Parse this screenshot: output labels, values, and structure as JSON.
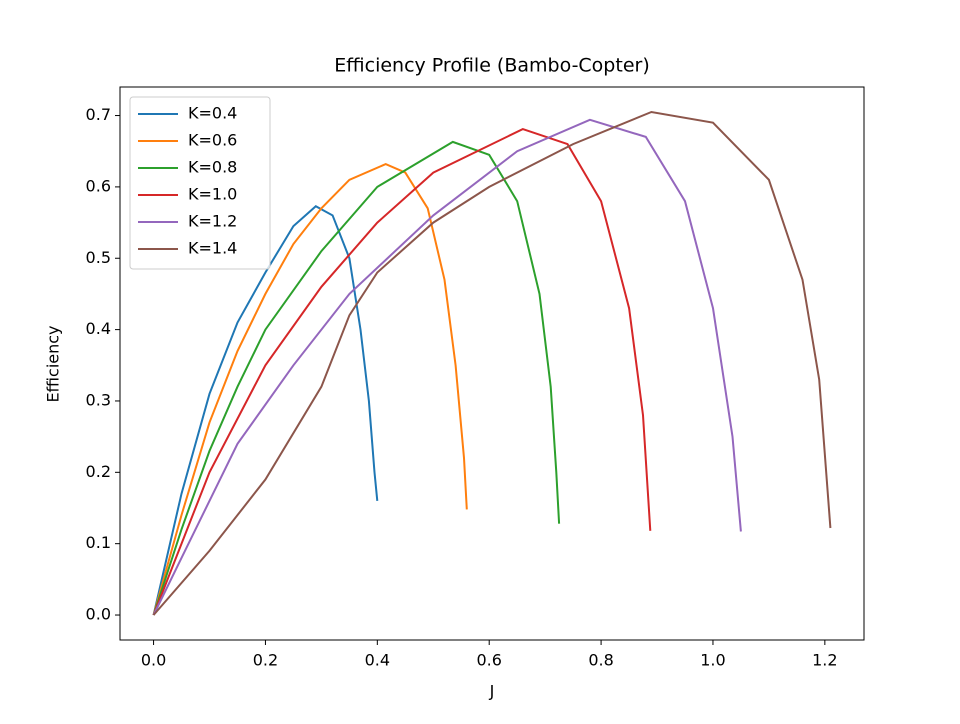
{
  "chart_data": {
    "type": "line",
    "title": "Efficiency Profile (Bambo-Copter)",
    "x_label": "J",
    "y_label": "Efficiency",
    "xlim": [
      -0.06,
      1.27
    ],
    "ylim": [
      -0.035,
      0.74
    ],
    "xticks": [
      {
        "value": 0,
        "label": "0.0"
      },
      0.2,
      0.4,
      0.6,
      0.8,
      {
        "value": 1,
        "label": "1.0"
      },
      1.2
    ],
    "yticks": [
      {
        "value": 0,
        "label": "0.0"
      },
      0.1,
      0.2,
      0.3,
      0.4,
      0.5,
      0.6,
      0.7
    ],
    "legend": "upper left",
    "series": [
      {
        "name": "K=0.4",
        "color": "#1f77b4",
        "x": [
          0,
          0.05,
          0.1,
          0.15,
          0.2,
          0.25,
          0.29,
          0.32,
          0.35,
          0.37,
          0.385,
          0.395,
          0.4
        ],
        "values": [
          0,
          0.17,
          0.31,
          0.41,
          0.48,
          0.545,
          0.573,
          0.56,
          0.5,
          0.4,
          0.3,
          0.2,
          0.16
        ]
      },
      {
        "name": "K=0.6",
        "color": "#ff7f0e",
        "x": [
          0,
          0.05,
          0.1,
          0.15,
          0.2,
          0.25,
          0.3,
          0.35,
          0.415,
          0.45,
          0.49,
          0.52,
          0.54,
          0.555,
          0.56
        ],
        "values": [
          0,
          0.14,
          0.27,
          0.37,
          0.45,
          0.52,
          0.57,
          0.61,
          0.632,
          0.62,
          0.57,
          0.47,
          0.35,
          0.22,
          0.148
        ]
      },
      {
        "name": "K=0.8",
        "color": "#2ca02c",
        "x": [
          0,
          0.05,
          0.1,
          0.15,
          0.2,
          0.3,
          0.4,
          0.535,
          0.6,
          0.65,
          0.69,
          0.71,
          0.72,
          0.725
        ],
        "values": [
          0,
          0.12,
          0.23,
          0.32,
          0.4,
          0.51,
          0.6,
          0.663,
          0.645,
          0.58,
          0.45,
          0.32,
          0.2,
          0.128
        ]
      },
      {
        "name": "K=1.0",
        "color": "#d62728",
        "x": [
          0,
          0.05,
          0.1,
          0.2,
          0.3,
          0.4,
          0.5,
          0.66,
          0.74,
          0.8,
          0.85,
          0.875,
          0.888
        ],
        "values": [
          0,
          0.1,
          0.2,
          0.35,
          0.46,
          0.55,
          0.62,
          0.681,
          0.66,
          0.58,
          0.43,
          0.28,
          0.118
        ]
      },
      {
        "name": "K=1.2",
        "color": "#9467bd",
        "x": [
          0,
          0.05,
          0.15,
          0.25,
          0.35,
          0.5,
          0.65,
          0.78,
          0.88,
          0.95,
          1.0,
          1.035,
          1.05
        ],
        "values": [
          0,
          0.08,
          0.24,
          0.35,
          0.45,
          0.56,
          0.65,
          0.694,
          0.67,
          0.58,
          0.43,
          0.25,
          0.117
        ]
      },
      {
        "name": "K=1.4",
        "color": "#8c564b",
        "x": [
          0,
          0.1,
          0.2,
          0.3,
          0.35,
          0.4,
          0.5,
          0.6,
          0.75,
          0.89,
          1.0,
          1.1,
          1.16,
          1.19,
          1.21
        ],
        "values": [
          0,
          0.09,
          0.19,
          0.32,
          0.42,
          0.48,
          0.55,
          0.6,
          0.66,
          0.705,
          0.69,
          0.61,
          0.47,
          0.33,
          0.122
        ]
      }
    ]
  }
}
